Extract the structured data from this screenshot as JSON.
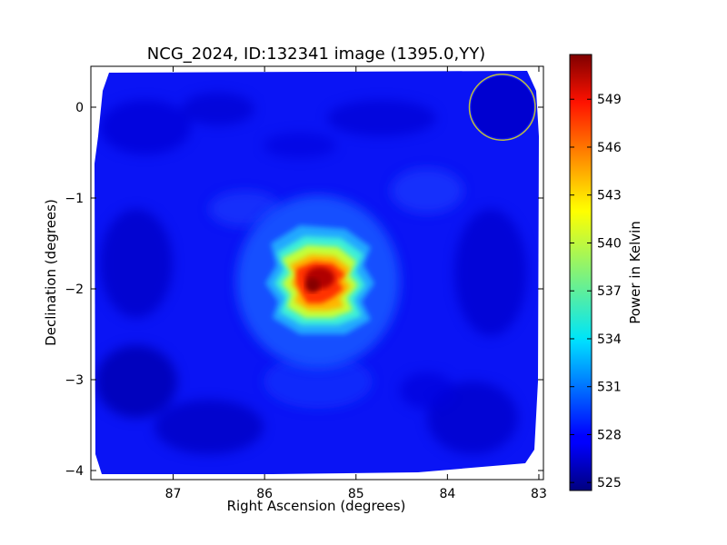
{
  "chart_data": {
    "type": "heatmap",
    "title": "NCG_2024, ID:132341 image (1395.0,YY)",
    "xlabel": "Right Ascension (degrees)",
    "ylabel": "Declination (degrees)",
    "xlim": [
      87.9,
      82.95
    ],
    "ylim": [
      -4.1,
      0.45
    ],
    "x_ticks": [
      87,
      86,
      85,
      84,
      83
    ],
    "x_tick_labels": [
      "87",
      "86",
      "85",
      "84",
      "83"
    ],
    "y_ticks": [
      0,
      -1,
      -2,
      -3,
      -4
    ],
    "y_tick_labels": [
      "0",
      "−1",
      "−2",
      "−3",
      "−4"
    ],
    "x_axis_reversed": true,
    "grid": false,
    "colormap": "jet",
    "colorbar": {
      "label": "Power in Kelvin",
      "range": [
        524.5,
        551.8
      ],
      "ticks": [
        525,
        528,
        531,
        534,
        537,
        540,
        543,
        546,
        549
      ],
      "tick_labels": [
        "525",
        "528",
        "531",
        "534",
        "537",
        "540",
        "543",
        "546",
        "549"
      ]
    },
    "background_level": 527,
    "source": {
      "ra": 85.4,
      "dec": -1.9,
      "peak": 551.5,
      "sigma_ra": 0.38,
      "sigma_dec": 0.32
    },
    "beam_circle": {
      "ra": 83.4,
      "dec": 0.0,
      "radius_deg": 0.36,
      "color": "#bfbf3f"
    }
  }
}
